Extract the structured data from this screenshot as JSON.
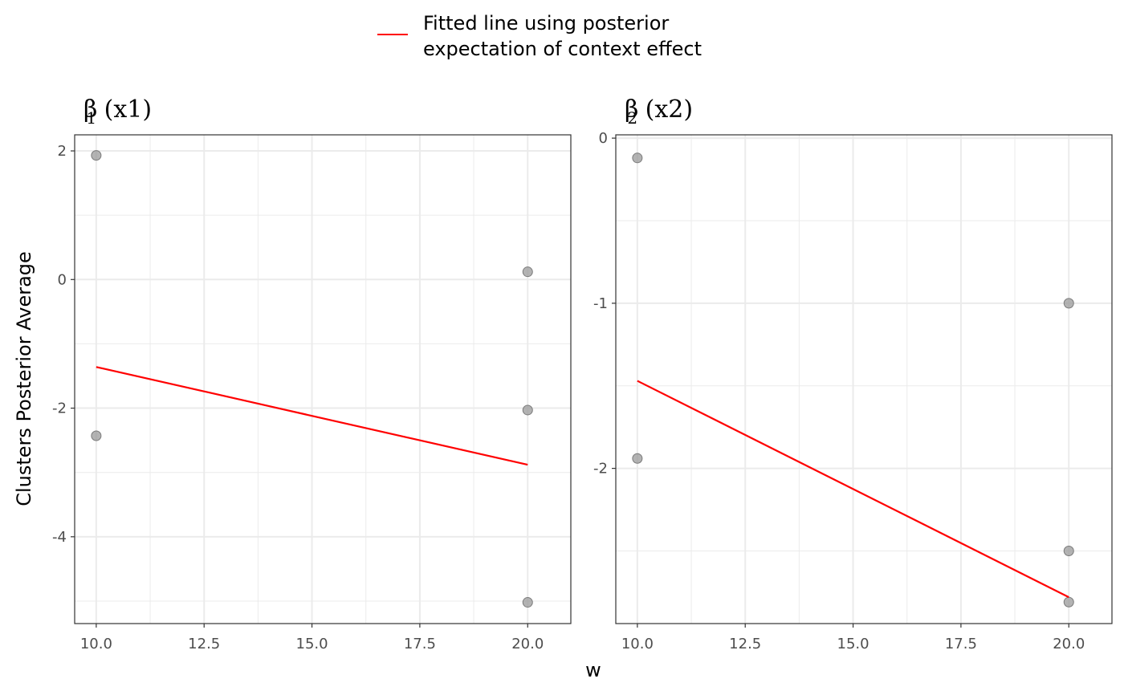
{
  "legend": {
    "line1": "Fitted line using posterior",
    "line2": "expectation of context effect",
    "color": "#ff0000"
  },
  "axes": {
    "xlabel": "w",
    "ylabel": "Clusters Posterior Average"
  },
  "colors": {
    "fit_line": "#ff0000",
    "point_fill": "#999999",
    "grid": "#ebebeb",
    "panel_border": "#333333"
  },
  "chart_data": [
    {
      "type": "scatter",
      "title_symbol": "β",
      "title_sub": "1",
      "title_rest": " (x1)",
      "xlim": [
        9.5,
        21.0
      ],
      "ylim": [
        -5.35,
        2.25
      ],
      "xticks": [
        10.0,
        12.5,
        15.0,
        17.5,
        20.0
      ],
      "xtick_labels": [
        "10.0",
        "12.5",
        "15.0",
        "17.5",
        "20.0"
      ],
      "yticks": [
        2,
        0,
        -2,
        -4
      ],
      "ytick_labels": [
        "2",
        "0",
        "-2",
        "-4"
      ],
      "yminor": [
        1,
        -1,
        -3,
        -5
      ],
      "points": [
        {
          "x": 10,
          "y": 1.93
        },
        {
          "x": 10,
          "y": -2.43
        },
        {
          "x": 20,
          "y": 0.12
        },
        {
          "x": 20,
          "y": -2.03
        },
        {
          "x": 20,
          "y": -5.02
        }
      ],
      "fit_line": [
        {
          "x": 10,
          "y": -1.36
        },
        {
          "x": 20,
          "y": -2.88
        }
      ]
    },
    {
      "type": "scatter",
      "title_symbol": "β",
      "title_sub": "2",
      "title_rest": " (x2)",
      "xlim": [
        9.5,
        21.0
      ],
      "ylim": [
        -2.94,
        0.02
      ],
      "xticks": [
        10.0,
        12.5,
        15.0,
        17.5,
        20.0
      ],
      "xtick_labels": [
        "10.0",
        "12.5",
        "15.0",
        "17.5",
        "20.0"
      ],
      "yticks": [
        0,
        -1,
        -2
      ],
      "ytick_labels": [
        "0",
        "-1",
        "-2"
      ],
      "yminor": [
        -0.5,
        -1.5,
        -2.5
      ],
      "points": [
        {
          "x": 10,
          "y": -0.12
        },
        {
          "x": 10,
          "y": -1.94
        },
        {
          "x": 20,
          "y": -1.0
        },
        {
          "x": 20,
          "y": -2.5
        },
        {
          "x": 20,
          "y": -2.81
        }
      ],
      "fit_line": [
        {
          "x": 10,
          "y": -1.47
        },
        {
          "x": 20,
          "y": -2.78
        }
      ]
    }
  ]
}
